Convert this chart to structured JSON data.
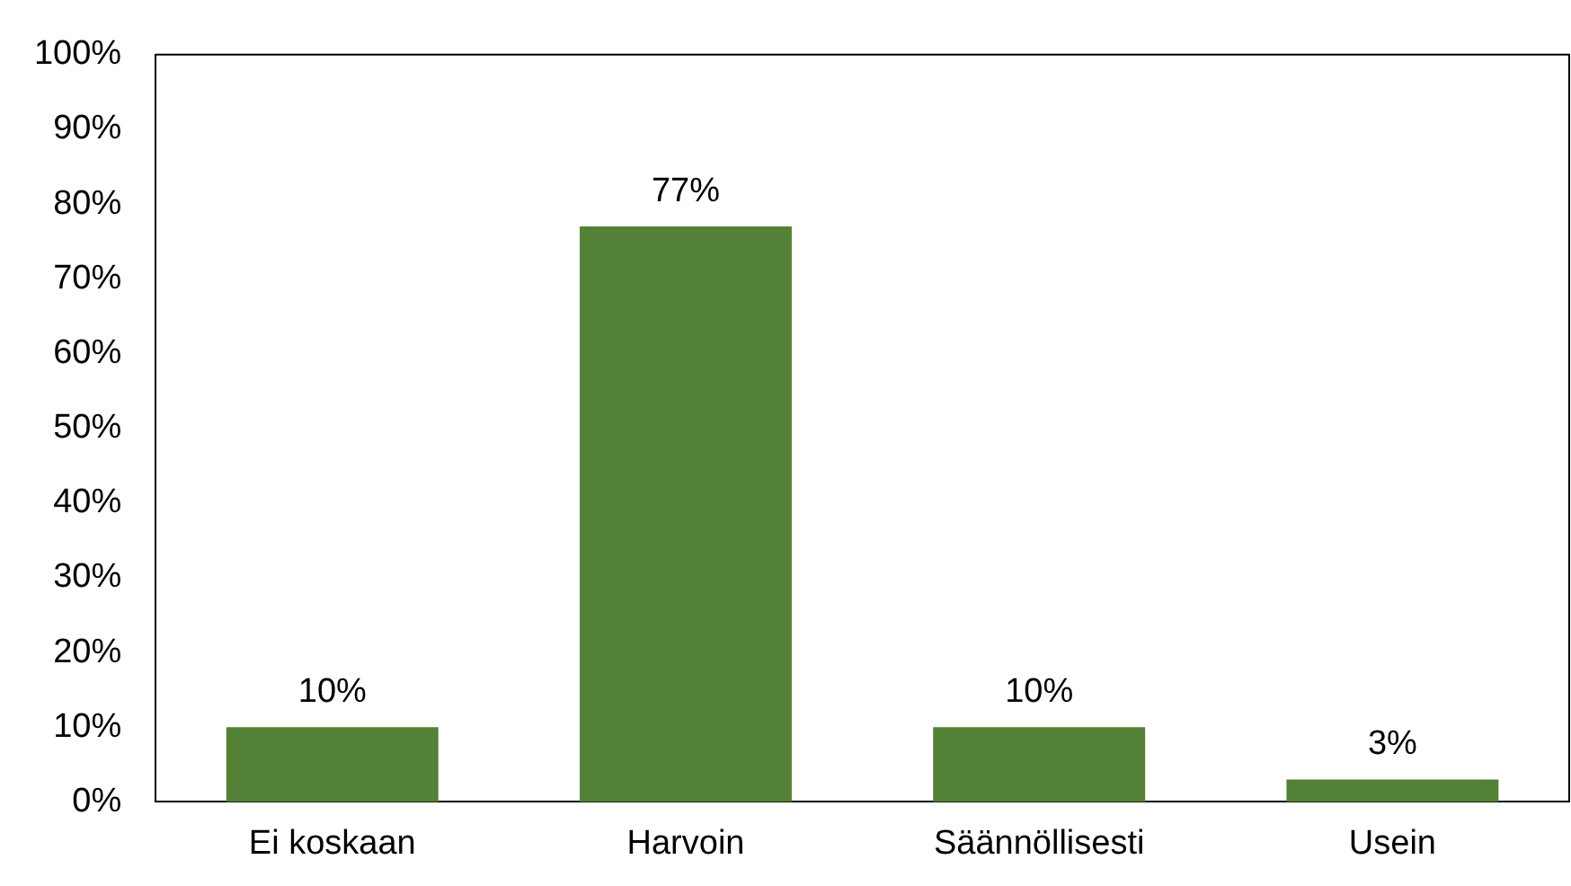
{
  "chart_data": {
    "type": "bar",
    "categories": [
      "Ei koskaan",
      "Harvoin",
      "Säännöllisesti",
      "Usein"
    ],
    "values": [
      10,
      77,
      10,
      3
    ],
    "value_labels": [
      "10%",
      "77%",
      "10%",
      "3%"
    ],
    "color": "#538135",
    "ylim": [
      0,
      100
    ],
    "yticks": [
      {
        "value": 0,
        "label": "0%"
      },
      {
        "value": 10,
        "label": "10%"
      },
      {
        "value": 20,
        "label": "20%"
      },
      {
        "value": 30,
        "label": "30%"
      },
      {
        "value": 40,
        "label": "40%"
      },
      {
        "value": 50,
        "label": "50%"
      },
      {
        "value": 60,
        "label": "60%"
      },
      {
        "value": 70,
        "label": "70%"
      },
      {
        "value": 80,
        "label": "80%"
      },
      {
        "value": 90,
        "label": "90%"
      },
      {
        "value": 100,
        "label": "100%"
      }
    ],
    "grid": false,
    "legend": false
  }
}
